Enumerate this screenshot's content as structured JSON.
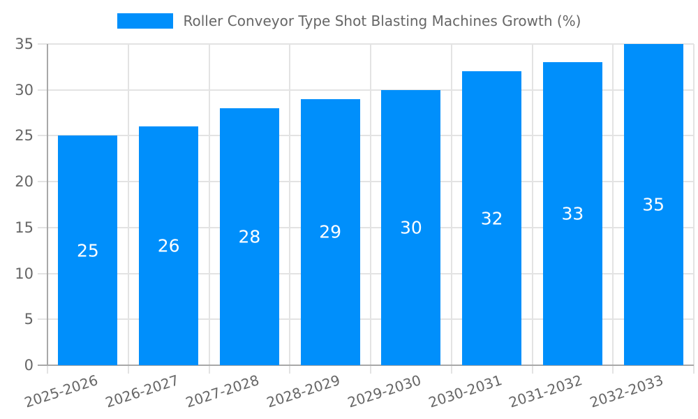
{
  "legend": {
    "label": "Roller Conveyor Type Shot Blasting Machines Growth (%)"
  },
  "colors": {
    "bar": "#008FFB",
    "value_label": "#ffffff",
    "axis_label": "#666666",
    "gridline": "#e3e3e3",
    "axis_line": "#a8a8a8",
    "background": "#ffffff"
  },
  "chart_data": {
    "type": "bar",
    "title": "Roller Conveyor Type Shot Blasting Machines Growth (%)",
    "categories": [
      "2025-2026",
      "2026-2027",
      "2027-2028",
      "2028-2029",
      "2029-2030",
      "2030-2031",
      "2031-2032",
      "2032-2033"
    ],
    "values": [
      25,
      26,
      28,
      29,
      30,
      32,
      33,
      35
    ],
    "value_labels": [
      "25",
      "26",
      "28",
      "29",
      "30",
      "32",
      "33",
      "35"
    ],
    "xlabel": "",
    "ylabel": "",
    "ylim": [
      0,
      35
    ],
    "yticks": [
      0,
      5,
      10,
      15,
      20,
      25,
      30,
      35
    ],
    "grid": true,
    "legend_position": "top-center",
    "bar_color": "#008FFB",
    "x_label_rotation_deg": -18
  }
}
